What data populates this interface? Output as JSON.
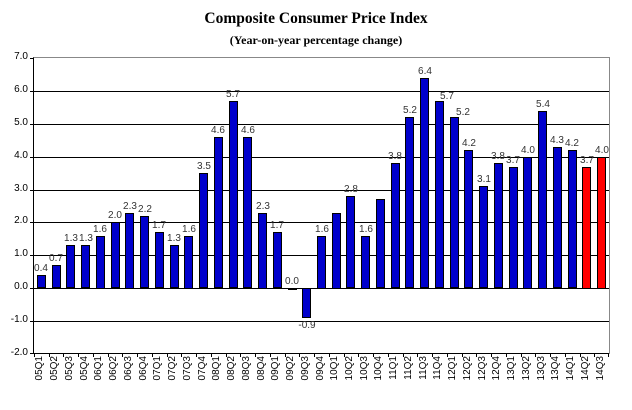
{
  "title": "Composite Consumer Price Index",
  "subtitle": "(Year-on-year percentage change)",
  "colors": {
    "bar_default": "#0000CC",
    "bar_highlight": "#FF0000",
    "bar_border": "#000000",
    "gridline": "#000000",
    "plot_border": "#888888",
    "data_label_text": "#333333",
    "axis_label_text": "#000000",
    "background": "#FFFFFF"
  },
  "chart_data": {
    "type": "bar",
    "title": "Composite Consumer Price Index",
    "subtitle": "(Year-on-year percentage change)",
    "xlabel": "",
    "ylabel": "",
    "ylim": [
      -2.0,
      7.0
    ],
    "ytick_step": 1.0,
    "ytick_labels": [
      "7.0",
      "6.0",
      "5.0",
      "4.0",
      "3.0",
      "2.0",
      "1.0",
      "0.0",
      "-1.0",
      "-2.0"
    ],
    "grid": true,
    "legend": false,
    "categories": [
      "05Q1",
      "05Q2",
      "05Q3",
      "05Q4",
      "06Q1",
      "06Q2",
      "06Q3",
      "06Q4",
      "07Q1",
      "07Q2",
      "07Q3",
      "07Q4",
      "08Q1",
      "08Q2",
      "08Q3",
      "08Q4",
      "09Q1",
      "09Q2",
      "09Q3",
      "09Q4",
      "10Q1",
      "10Q2",
      "10Q3",
      "10Q4",
      "11Q1",
      "11Q2",
      "11Q3",
      "11Q4",
      "12Q1",
      "12Q2",
      "12Q3",
      "12Q4",
      "13Q1",
      "13Q2",
      "13Q3",
      "13Q4",
      "14Q1",
      "14Q2",
      "14Q3"
    ],
    "values": [
      0.4,
      0.7,
      1.3,
      1.3,
      1.6,
      2.0,
      2.3,
      2.2,
      1.7,
      1.3,
      1.6,
      3.5,
      4.6,
      5.7,
      4.6,
      2.3,
      1.7,
      0.0,
      -0.9,
      1.6,
      2.3,
      2.8,
      1.6,
      2.7,
      3.8,
      5.2,
      6.4,
      5.7,
      5.2,
      4.2,
      3.1,
      3.8,
      3.7,
      4.0,
      5.4,
      4.3,
      4.2,
      3.7,
      4.0
    ],
    "data_labels": [
      "0.4",
      "0.7",
      "1.3",
      "1.3",
      "1.6",
      "2.0",
      "2.3",
      "2.2",
      "1.7",
      "1.3",
      "1.6",
      "3.5",
      "4.6",
      "5.7",
      "4.6",
      "2.3",
      "1.7",
      "0.0",
      "-0.9",
      "1.6",
      "",
      "2.8",
      "1.6",
      "",
      "3.8",
      "5.2",
      "6.4",
      "5.7",
      "5.2",
      "4.2",
      "3.1",
      "3.8",
      "3.7",
      "4.0",
      "5.4",
      "4.3",
      "4.2",
      "3.7",
      "4.0"
    ],
    "label_offsets": {
      "27": [
        8,
        2
      ],
      "28": [
        9,
        2
      ]
    },
    "highlight_indices": [
      37,
      38
    ],
    "highlight_meaning": "most recent two quarters shown in red"
  }
}
